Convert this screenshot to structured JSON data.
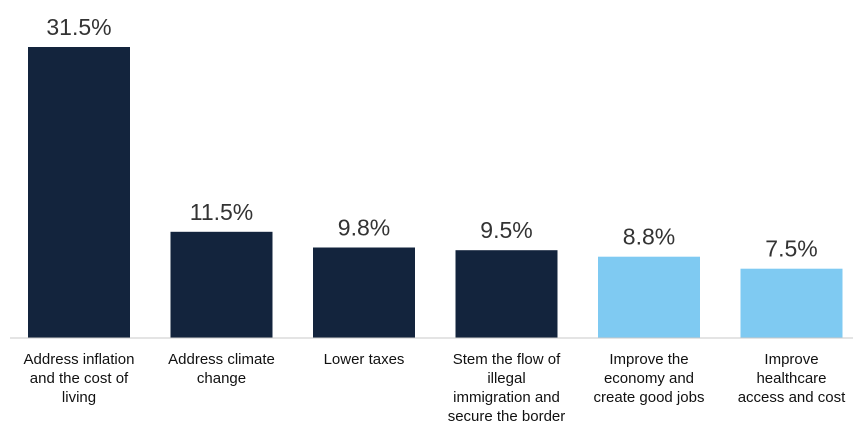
{
  "chart_data": {
    "type": "bar",
    "title": "",
    "xlabel": "",
    "ylabel": "",
    "ylim": [
      0,
      31.5
    ],
    "grid": false,
    "categories": [
      [
        "Address inflation",
        "and the cost of",
        "living"
      ],
      [
        "Address climate",
        "change"
      ],
      [
        "Lower taxes"
      ],
      [
        "Stem the flow of",
        "illegal",
        "immigration and",
        "secure the border"
      ],
      [
        "Improve the",
        "economy and",
        "create good jobs"
      ],
      [
        "Improve",
        "healthcare",
        "access and cost"
      ]
    ],
    "values": [
      31.5,
      11.5,
      9.8,
      9.5,
      8.8,
      7.5
    ],
    "data_labels": [
      "31.5%",
      "11.5%",
      "9.8%",
      "9.5%",
      "8.8%",
      "7.5%"
    ],
    "bar_colors": [
      "#13243d",
      "#13243d",
      "#13243d",
      "#13243d",
      "#7fcaf2",
      "#7fcaf2"
    ],
    "axis_color": "#c8c8c8"
  }
}
